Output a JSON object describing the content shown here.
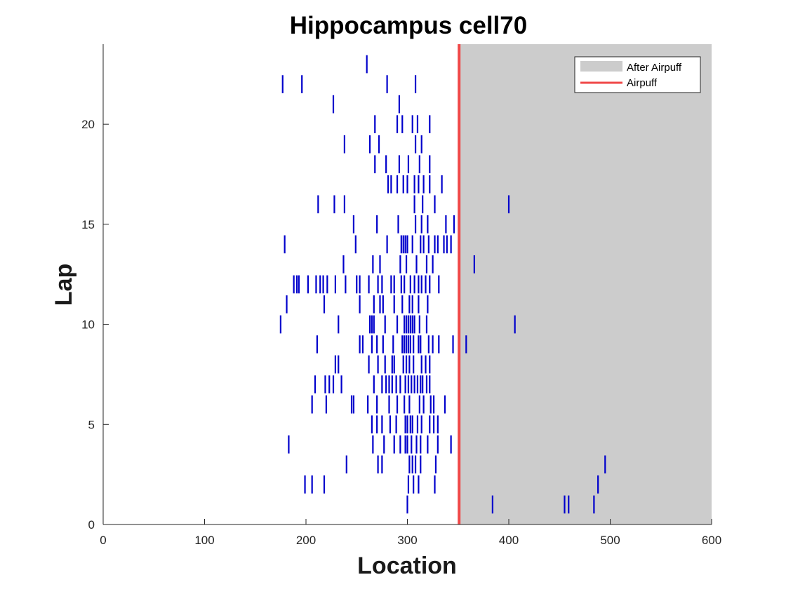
{
  "chart_data": {
    "type": "raster",
    "title": "Hippocampus cell70",
    "xlabel": "Location",
    "ylabel": "Lap",
    "xlim": [
      0,
      600
    ],
    "ylim": [
      0,
      24
    ],
    "xticks": [
      0,
      100,
      200,
      300,
      400,
      500,
      600
    ],
    "yticks": [
      0,
      5,
      10,
      15,
      20
    ],
    "grid": false,
    "legend_position": "top-right",
    "airpuff_location": 351,
    "after_airpuff_region": [
      351,
      600
    ],
    "legend": [
      {
        "label": "After Airpuff",
        "kind": "patch",
        "color": "#cccccc"
      },
      {
        "label": "Airpuff",
        "kind": "line",
        "color": "#f04848"
      }
    ],
    "spike_color": "#0000cc",
    "spike_height": 0.9,
    "laps": [
      {
        "lap": 1,
        "x": [
          300,
          384,
          455,
          459,
          484
        ]
      },
      {
        "lap": 2,
        "x": [
          199,
          206,
          218,
          301,
          306,
          311,
          327,
          488
        ]
      },
      {
        "lap": 3,
        "x": [
          240,
          271,
          275,
          302,
          305,
          308,
          313,
          328,
          495
        ]
      },
      {
        "lap": 4,
        "x": [
          183,
          266,
          277,
          287,
          293,
          298,
          300,
          304,
          309,
          313,
          320,
          330,
          343
        ]
      },
      {
        "lap": 5,
        "x": [
          265,
          270,
          275,
          283,
          289,
          298,
          300,
          303,
          305,
          310,
          314,
          322,
          326,
          330
        ]
      },
      {
        "lap": 6,
        "x": [
          206,
          220,
          245,
          247,
          261,
          270,
          282,
          290,
          297,
          302,
          312,
          316,
          323,
          326,
          337
        ]
      },
      {
        "lap": 7,
        "x": [
          209,
          219,
          223,
          227,
          235,
          267,
          275,
          279,
          282,
          285,
          289,
          293,
          298,
          301,
          304,
          307,
          310,
          313,
          315,
          319,
          322
        ]
      },
      {
        "lap": 8,
        "x": [
          229,
          232,
          262,
          271,
          278,
          285,
          287,
          296,
          299,
          302,
          306,
          314,
          318,
          322
        ]
      },
      {
        "lap": 9,
        "x": [
          211,
          253,
          256,
          265,
          270,
          276,
          286,
          295,
          297,
          299,
          301,
          303,
          306,
          311,
          313,
          321,
          325,
          331,
          345,
          358
        ]
      },
      {
        "lap": 10,
        "x": [
          175,
          232,
          263,
          265,
          267,
          278,
          290,
          297,
          299,
          301,
          303,
          305,
          307,
          312,
          319,
          406
        ]
      },
      {
        "lap": 11,
        "x": [
          181,
          218,
          253,
          267,
          273,
          276,
          287,
          295,
          302,
          305,
          311,
          320
        ]
      },
      {
        "lap": 12,
        "x": [
          188,
          191,
          193,
          202,
          210,
          214,
          217,
          221,
          229,
          239,
          250,
          253,
          262,
          271,
          275,
          284,
          287,
          294,
          297,
          303,
          307,
          311,
          314,
          318,
          322,
          331
        ]
      },
      {
        "lap": 13,
        "x": [
          237,
          266,
          273,
          293,
          299,
          309,
          319,
          325,
          366
        ]
      },
      {
        "lap": 14,
        "x": [
          179,
          249,
          280,
          294,
          296,
          298,
          300,
          305,
          313,
          316,
          321,
          327,
          330,
          336,
          339,
          343
        ]
      },
      {
        "lap": 15,
        "x": [
          247,
          270,
          291,
          308,
          314,
          320,
          338,
          346
        ]
      },
      {
        "lap": 16,
        "x": [
          212,
          228,
          238,
          307,
          315,
          327,
          400
        ]
      },
      {
        "lap": 17,
        "x": [
          281,
          284,
          290,
          296,
          300,
          307,
          311,
          316,
          322,
          334
        ]
      },
      {
        "lap": 18,
        "x": [
          268,
          279,
          292,
          301,
          312,
          322
        ]
      },
      {
        "lap": 19,
        "x": [
          238,
          263,
          272,
          308,
          314
        ]
      },
      {
        "lap": 20,
        "x": [
          268,
          290,
          295,
          305,
          310,
          322
        ]
      },
      {
        "lap": 21,
        "x": [
          227,
          292
        ]
      },
      {
        "lap": 22,
        "x": [
          177,
          196,
          280,
          308
        ]
      },
      {
        "lap": 23,
        "x": [
          260
        ]
      }
    ]
  }
}
